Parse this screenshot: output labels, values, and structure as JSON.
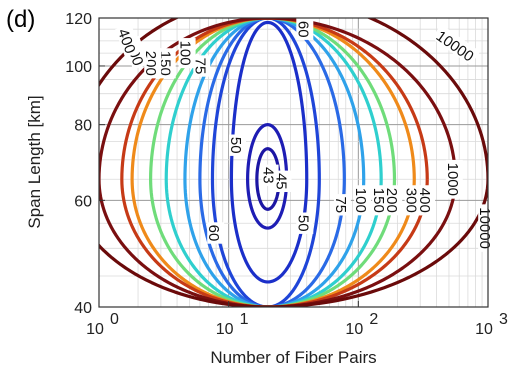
{
  "panel_label": "(d)",
  "chart_data": {
    "type": "contour",
    "title": "",
    "xlabel": "Number of Fiber Pairs",
    "ylabel": "Span Length [km]",
    "xscale": "log",
    "yscale": "log",
    "xlim": [
      1,
      1000
    ],
    "ylim": [
      40,
      120
    ],
    "x_ticks": [
      {
        "value": 1,
        "base": "10",
        "exp": "0"
      },
      {
        "value": 10,
        "base": "10",
        "exp": "1"
      },
      {
        "value": 100,
        "base": "10",
        "exp": "2"
      },
      {
        "value": 1000,
        "base": "10",
        "exp": "3"
      }
    ],
    "y_ticks": [
      {
        "value": 40,
        "label": "40"
      },
      {
        "value": 60,
        "label": "60"
      },
      {
        "value": 80,
        "label": "80"
      },
      {
        "value": 100,
        "label": "100"
      },
      {
        "value": 120,
        "label": "120"
      }
    ],
    "grid": true,
    "minimum": {
      "x": 20,
      "y": 65
    },
    "levels": [
      {
        "value": 43,
        "label": "43",
        "color": "#1c16a3",
        "x_left": 16.5,
        "x_right": 24.5,
        "y_bottom": 58,
        "y_top": 73,
        "labels": [
          {
            "x": 20.5,
            "y": 66,
            "rot": 90
          }
        ]
      },
      {
        "value": 45,
        "label": "45",
        "color": "#1e1db4",
        "x_left": 14.0,
        "x_right": 28.0,
        "y_bottom": 54,
        "y_top": 80,
        "labels": [
          {
            "x": 25.8,
            "y": 64.5,
            "rot": 90
          }
        ]
      },
      {
        "value": 50,
        "label": "50",
        "color": "#1b2fc9",
        "x_left": 10.5,
        "x_right": 40.0,
        "y_bottom": 44,
        "y_top": 118,
        "labels": [
          {
            "x": 11.5,
            "y": 74,
            "rot": 90
          },
          {
            "x": 38.0,
            "y": 55,
            "rot": 90
          }
        ]
      },
      {
        "value": 60,
        "label": "60",
        "color": "#1f45d8",
        "x_left": 7.5,
        "x_right": 50.0,
        "y_bottom": 40,
        "y_top": 120,
        "labels": [
          {
            "x": 7.8,
            "y": 53,
            "rot": 90
          },
          {
            "x": 38.0,
            "y": 115,
            "rot": 90
          }
        ]
      },
      {
        "value": 75,
        "label": "75",
        "color": "#2a6ae6",
        "x_left": 6.0,
        "x_right": 78.0,
        "y_bottom": 40,
        "y_top": 120,
        "labels": [
          {
            "x": 6.1,
            "y": 100,
            "rot": 90
          },
          {
            "x": 74.0,
            "y": 59,
            "rot": 90
          }
        ]
      },
      {
        "value": 100,
        "label": "100",
        "color": "#2fa2ea",
        "x_left": 4.6,
        "x_right": 110.0,
        "y_bottom": 40,
        "y_top": 120,
        "labels": [
          {
            "x": 4.7,
            "y": 105,
            "rot": 90
          },
          {
            "x": 106.0,
            "y": 60,
            "rot": 90
          }
        ]
      },
      {
        "value": 150,
        "label": "150",
        "color": "#2fcfce",
        "x_left": 3.3,
        "x_right": 150.0,
        "y_bottom": 40,
        "y_top": 120,
        "labels": [
          {
            "x": 3.3,
            "y": 101,
            "rot": 90
          },
          {
            "x": 146.0,
            "y": 60,
            "rot": 90
          }
        ]
      },
      {
        "value": 200,
        "label": "200",
        "color": "#6fdc7a",
        "x_left": 2.5,
        "x_right": 190.0,
        "y_bottom": 40,
        "y_top": 120,
        "labels": [
          {
            "x": 2.55,
            "y": 101,
            "rot": 90
          },
          {
            "x": 184.0,
            "y": 60,
            "rot": 90
          }
        ]
      },
      {
        "value": 300,
        "label": "300",
        "color": "#ef8a1a",
        "x_left": 1.8,
        "x_right": 270.0,
        "y_bottom": 40,
        "y_top": 120,
        "labels": [
          {
            "x": 1.9,
            "y": 105,
            "rot": 70
          },
          {
            "x": 260.0,
            "y": 60,
            "rot": 90
          }
        ]
      },
      {
        "value": 400,
        "label": "400",
        "color": "#c63a16",
        "x_left": 1.5,
        "x_right": 340.0,
        "y_bottom": 40,
        "y_top": 120,
        "labels": [
          {
            "x": 1.65,
            "y": 110,
            "rot": 70
          },
          {
            "x": 330.0,
            "y": 60,
            "rot": 90
          }
        ]
      },
      {
        "value": 1000,
        "label": "1000",
        "color": "#7a0f10",
        "x_left": 1.0,
        "x_right": 560.0,
        "y_bottom": 40,
        "y_top": 120,
        "labels": [
          {
            "x": 540.0,
            "y": 65,
            "rot": 90
          }
        ]
      },
      {
        "value": 10000,
        "label": "10000",
        "color": "#6a0a0a",
        "x_left": 0.6,
        "x_right": 1000.0,
        "y_bottom": 40,
        "y_top": 130,
        "labels": [
          {
            "x": 560.0,
            "y": 108,
            "rot": 35
          },
          {
            "x": 960.0,
            "y": 54,
            "rot": 90
          }
        ]
      }
    ]
  }
}
